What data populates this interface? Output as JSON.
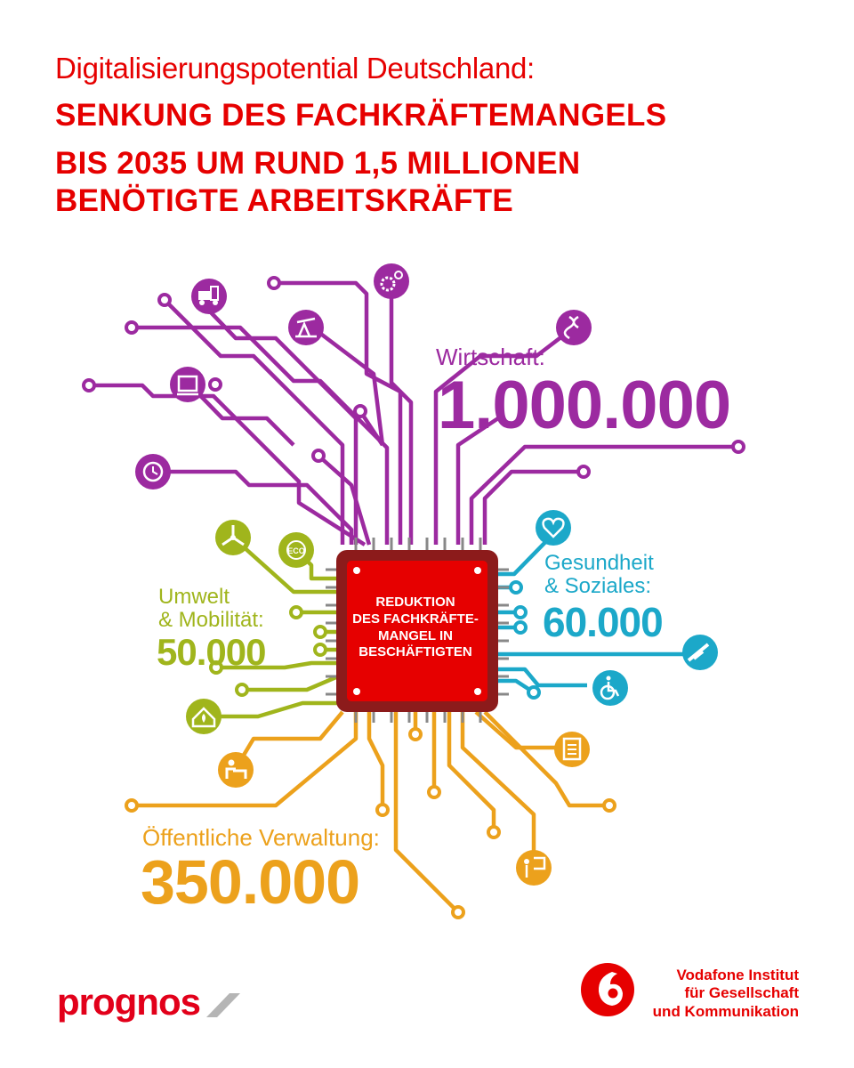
{
  "title": {
    "subtitle": "Digitalisierungspotential Deutschland:",
    "headline_lines": [
      "SENKUNG DES FACHKRÄFTEMANGELS",
      "BIS 2035 UM RUND 1,5 MILLIONEN",
      "BENÖTIGTE ARBEITSKRÄFTE"
    ]
  },
  "chip": {
    "lines": [
      "REDUKTION",
      "DES FACHKRÄFTE-",
      "MANGEL IN",
      "BESCHÄFTIGTEN"
    ]
  },
  "sectors": {
    "wirtschaft": {
      "label": "Wirtschaft:",
      "value": "1.000.000",
      "color": "#9c2aa0"
    },
    "gesundheit": {
      "label_lines": [
        "Gesundheit",
        "& Soziales:"
      ],
      "value": "60.000",
      "color": "#1ca8c9"
    },
    "umwelt": {
      "label_lines": [
        "Umwelt",
        "& Mobilität:"
      ],
      "value": "50.000",
      "color": "#a0b51c"
    },
    "verwaltung": {
      "label": "Öffentliche Verwaltung:",
      "value": "350.000",
      "color": "#eca11c"
    }
  },
  "icons": {
    "wirtschaft": [
      "forklift-icon",
      "gears-icon",
      "oil-pump-icon",
      "dna-hand-icon",
      "package-icon",
      "clock-gear-icon"
    ],
    "umwelt": [
      "wind-turbine-icon",
      "eco-icon",
      "house-leaf-icon"
    ],
    "gesundheit": [
      "heart-icon",
      "syringe-icon",
      "wheelchair-icon"
    ],
    "verwaltung": [
      "office-worker-icon",
      "clipboard-icon",
      "teacher-icon"
    ]
  },
  "branding": {
    "left_logo": "prognos",
    "right_org_lines": [
      "Vodafone Institut",
      "für Gesellschaft",
      "und Kommunikation"
    ],
    "accent": "#e60000"
  }
}
